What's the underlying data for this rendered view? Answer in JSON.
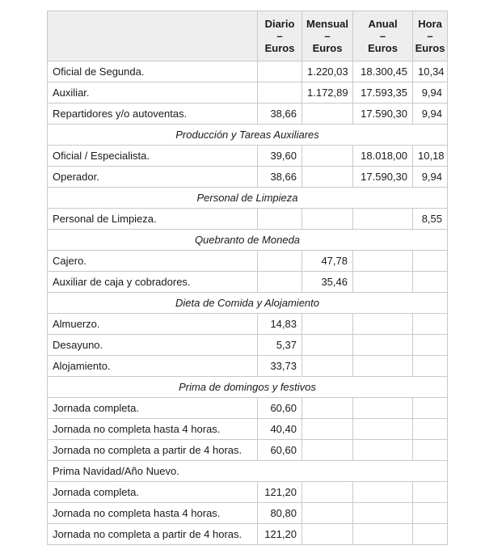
{
  "style": {
    "border_color": "#c9c9c9",
    "header_background": "#eeeeee",
    "text_color": "#1a1a1a",
    "page_background": "#ffffff"
  },
  "table": {
    "header": {
      "corner": "",
      "columns": [
        {
          "name": "Diario",
          "dash": "–",
          "unit": "Euros"
        },
        {
          "name": "Mensual",
          "dash": "–",
          "unit": "Euros"
        },
        {
          "name": "Anual",
          "dash": "–",
          "unit": "Euros"
        },
        {
          "name": "Hora",
          "dash": "–",
          "unit": "Euros"
        }
      ]
    },
    "rows": [
      {
        "type": "data",
        "label": "Oficial de Segunda.",
        "diario": "",
        "mensual": "1.220,03",
        "anual": "18.300,45",
        "hora": "10,34"
      },
      {
        "type": "data",
        "label": "Auxiliar.",
        "diario": "",
        "mensual": "1.172,89",
        "anual": "17.593,35",
        "hora": "9,94"
      },
      {
        "type": "data",
        "label": "Repartidores y/o autoventas.",
        "diario": "38,66",
        "mensual": "",
        "anual": "17.590,30",
        "hora": "9,94"
      },
      {
        "type": "section",
        "title": "Producción y Tareas Auxiliares"
      },
      {
        "type": "data",
        "label": "Oficial / Especialista.",
        "diario": "39,60",
        "mensual": "",
        "anual": "18.018,00",
        "hora": "10,18"
      },
      {
        "type": "data",
        "label": "Operador.",
        "diario": "38,66",
        "mensual": "",
        "anual": "17.590,30",
        "hora": "9,94"
      },
      {
        "type": "section",
        "title": "Personal de Limpieza"
      },
      {
        "type": "data",
        "label": "Personal de Limpieza.",
        "diario": "",
        "mensual": "",
        "anual": "",
        "hora": "8,55"
      },
      {
        "type": "section",
        "title": "Quebranto de Moneda"
      },
      {
        "type": "data",
        "label": "Cajero.",
        "diario": "",
        "mensual": "47,78",
        "anual": "",
        "hora": ""
      },
      {
        "type": "data",
        "label": "Auxiliar de caja y cobradores.",
        "diario": "",
        "mensual": "35,46",
        "anual": "",
        "hora": ""
      },
      {
        "type": "section",
        "title": "Dieta de Comida y Alojamiento"
      },
      {
        "type": "data",
        "label": "Almuerzo.",
        "diario": "14,83",
        "mensual": "",
        "anual": "",
        "hora": ""
      },
      {
        "type": "data",
        "label": "Desayuno.",
        "diario": "5,37",
        "mensual": "",
        "anual": "",
        "hora": ""
      },
      {
        "type": "data",
        "label": "Alojamiento.",
        "diario": "33,73",
        "mensual": "",
        "anual": "",
        "hora": ""
      },
      {
        "type": "section",
        "title": "Prima de domingos y festivos"
      },
      {
        "type": "data",
        "label": "Jornada completa.",
        "diario": "60,60",
        "mensual": "",
        "anual": "",
        "hora": ""
      },
      {
        "type": "data",
        "label": "Jornada no completa hasta 4 horas.",
        "diario": "40,40",
        "mensual": "",
        "anual": "",
        "hora": ""
      },
      {
        "type": "data",
        "label": "Jornada no completa a partir de 4 horas.",
        "diario": "60,60",
        "mensual": "",
        "anual": "",
        "hora": ""
      },
      {
        "type": "subheading",
        "title": "Prima Navidad/Año Nuevo."
      },
      {
        "type": "data",
        "label": "Jornada completa.",
        "diario": "121,20",
        "mensual": "",
        "anual": "",
        "hora": ""
      },
      {
        "type": "data",
        "label": "Jornada no completa hasta 4 horas.",
        "diario": "80,80",
        "mensual": "",
        "anual": "",
        "hora": ""
      },
      {
        "type": "data",
        "label": "Jornada no completa a partir de 4 horas.",
        "diario": "121,20",
        "mensual": "",
        "anual": "",
        "hora": ""
      }
    ]
  }
}
